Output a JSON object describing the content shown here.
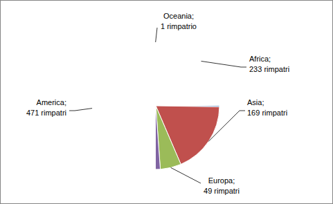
{
  "chart_data": {
    "type": "pie",
    "categories": [
      "Africa",
      "Asia",
      "Europa",
      "America",
      "Oceania"
    ],
    "values": [
      233,
      169,
      49,
      471,
      1
    ],
    "value_labels": [
      "Africa; 233 rimpatri",
      "Asia; 169 rimpatri",
      "Europa; 49 rimpatri",
      "America; 471 rimpatri",
      "Oceania; 1 rimpatrio"
    ],
    "colors": [
      "#4f81bd",
      "#c0504d",
      "#9bbb59",
      "#8064a2",
      "#4bacc6"
    ],
    "data_labels": true
  }
}
